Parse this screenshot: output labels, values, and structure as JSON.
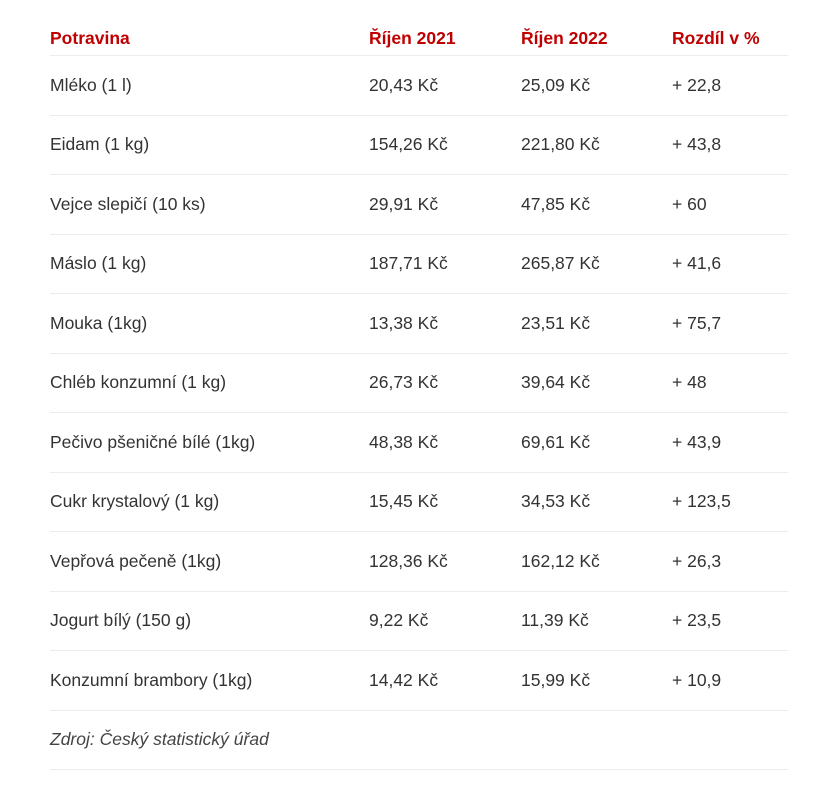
{
  "table": {
    "headers": [
      "Potravina",
      "Říjen 2021",
      "Říjen 2022",
      "Rozdíl v %"
    ],
    "rows": [
      [
        "Mléko (1 l)",
        "20,43 Kč",
        "25,09 Kč",
        "+ 22,8"
      ],
      [
        "Eidam (1 kg)",
        "154,26 Kč",
        "221,80 Kč",
        "+ 43,8"
      ],
      [
        "Vejce slepičí (10 ks)",
        "29,91 Kč",
        "47,85 Kč",
        "+ 60"
      ],
      [
        "Máslo (1 kg)",
        "187,71 Kč",
        "265,87 Kč",
        "+ 41,6"
      ],
      [
        "Mouka (1kg)",
        "13,38 Kč",
        "23,51 Kč",
        "+ 75,7"
      ],
      [
        "Chléb konzumní (1 kg)",
        "26,73 Kč",
        "39,64 Kč",
        "+ 48"
      ],
      [
        "Pečivo pšeničné bílé (1kg)",
        "48,38 Kč",
        "69,61 Kč",
        "+ 43,9"
      ],
      [
        "Cukr krystalový (1 kg)",
        "15,45 Kč",
        "34,53 Kč",
        "+ 123,5"
      ],
      [
        "Vepřová pečeně (1kg)",
        "128,36 Kč",
        "162,12 Kč",
        "+ 26,3"
      ],
      [
        "Jogurt bílý (150 g)",
        "9,22 Kč",
        "11,39 Kč",
        "+ 23,5"
      ],
      [
        "Konzumní brambory (1kg)",
        "14,42 Kč",
        "15,99 Kč",
        "+ 10,9"
      ]
    ],
    "source": "Zdroj: Český statistický úřad"
  },
  "colors": {
    "header_text": "#c00000",
    "body_text": "#333333",
    "divider": "#ececec"
  }
}
